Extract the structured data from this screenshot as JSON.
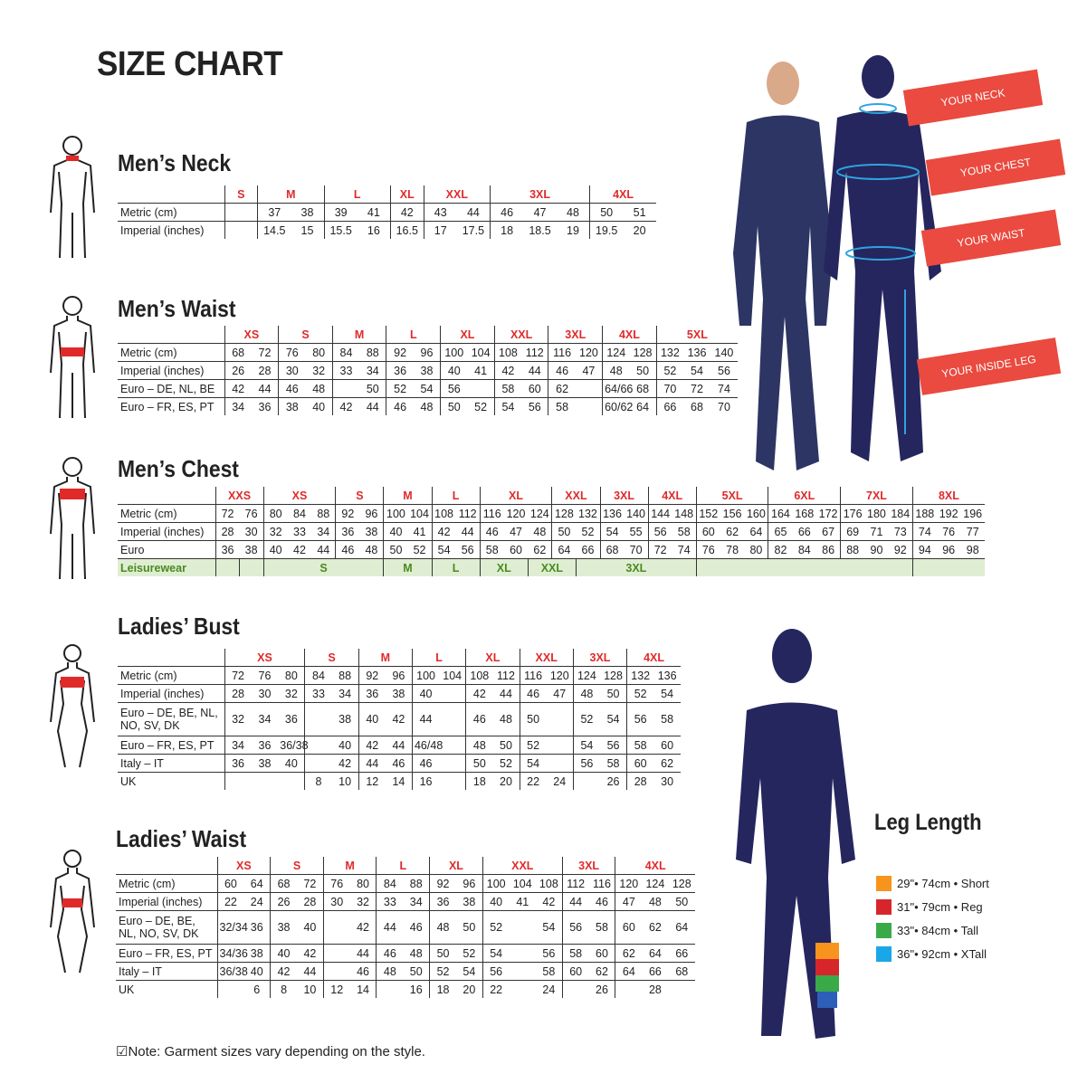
{
  "title": "SIZE CHART",
  "tables": [
    {
      "title": "Men’s Neck",
      "groups": [
        [
          "S",
          1
        ],
        [
          "M",
          2
        ],
        [
          "L",
          2
        ],
        [
          "XL",
          1
        ],
        [
          "XXL",
          2
        ],
        [
          "3XL",
          3
        ],
        [
          "4XL",
          2
        ]
      ],
      "rows": [
        {
          "label": "Metric (cm)",
          "cells": [
            "",
            "37",
            "38",
            "39",
            "41",
            "42",
            "43",
            "44",
            "46",
            "47",
            "48",
            "50",
            "51"
          ]
        },
        {
          "label": "Imperial (inches)",
          "cells": [
            "",
            "14.5",
            "15",
            "15.5",
            "16",
            "16.5",
            "17",
            "17.5",
            "18",
            "18.5",
            "19",
            "19.5",
            "20"
          ]
        }
      ]
    },
    {
      "title": "Men’s Waist",
      "groups": [
        [
          "XS",
          2
        ],
        [
          "S",
          2
        ],
        [
          "M",
          2
        ],
        [
          "L",
          2
        ],
        [
          "XL",
          2
        ],
        [
          "XXL",
          2
        ],
        [
          "3XL",
          2
        ],
        [
          "4XL",
          2
        ],
        [
          "5XL",
          3
        ]
      ],
      "rows": [
        {
          "label": "Metric (cm)",
          "cells": [
            "68",
            "72",
            "76",
            "80",
            "84",
            "88",
            "92",
            "96",
            "100",
            "104",
            "108",
            "112",
            "116",
            "120",
            "124",
            "128",
            "132",
            "136",
            "140"
          ]
        },
        {
          "label": "Imperial (inches)",
          "cells": [
            "26",
            "28",
            "30",
            "32",
            "33",
            "34",
            "36",
            "38",
            "40",
            "41",
            "42",
            "44",
            "46",
            "47",
            "48",
            "50",
            "52",
            "54",
            "56"
          ]
        },
        {
          "label": "Euro – DE, NL, BE",
          "cells": [
            "42",
            "44",
            "46",
            "48",
            "",
            "50",
            "52",
            "54",
            "56",
            "",
            "58",
            "60",
            "62",
            "",
            "64/66",
            "68",
            "70",
            "72",
            "74"
          ]
        },
        {
          "label": "Euro – FR, ES, PT",
          "cells": [
            "34",
            "36",
            "38",
            "40",
            "42",
            "44",
            "46",
            "48",
            "50",
            "52",
            "54",
            "56",
            "58",
            "",
            "60/62",
            "64",
            "66",
            "68",
            "70"
          ]
        }
      ]
    },
    {
      "title": "Men’s Chest",
      "groups": [
        [
          "XXS",
          2
        ],
        [
          "XS",
          3
        ],
        [
          "S",
          2
        ],
        [
          "M",
          2
        ],
        [
          "L",
          2
        ],
        [
          "XL",
          3
        ],
        [
          "XXL",
          2
        ],
        [
          "3XL",
          2
        ],
        [
          "4XL",
          2
        ],
        [
          "5XL",
          3
        ],
        [
          "6XL",
          3
        ],
        [
          "7XL",
          3
        ],
        [
          "8XL",
          3
        ]
      ],
      "rows": [
        {
          "label": "Metric (cm)",
          "cells": [
            "72",
            "76",
            "80",
            "84",
            "88",
            "92",
            "96",
            "100",
            "104",
            "108",
            "112",
            "116",
            "120",
            "124",
            "128",
            "132",
            "136",
            "140",
            "144",
            "148",
            "152",
            "156",
            "160",
            "164",
            "168",
            "172",
            "176",
            "180",
            "184",
            "188",
            "192",
            "196"
          ]
        },
        {
          "label": "Imperial (inches)",
          "cells": [
            "28",
            "30",
            "32",
            "33",
            "34",
            "36",
            "38",
            "40",
            "41",
            "42",
            "44",
            "46",
            "47",
            "48",
            "50",
            "52",
            "54",
            "55",
            "56",
            "58",
            "60",
            "62",
            "64",
            "65",
            "66",
            "67",
            "69",
            "71",
            "73",
            "74",
            "76",
            "77"
          ]
        },
        {
          "label": "Euro",
          "cells": [
            "36",
            "38",
            "40",
            "42",
            "44",
            "46",
            "48",
            "50",
            "52",
            "54",
            "56",
            "58",
            "60",
            "62",
            "64",
            "66",
            "68",
            "70",
            "72",
            "74",
            "76",
            "78",
            "80",
            "82",
            "84",
            "86",
            "88",
            "90",
            "92",
            "94",
            "96",
            "98"
          ]
        }
      ],
      "leisure": {
        "label": "Leisurewear",
        "cells": [
          [
            "",
            1
          ],
          [
            "",
            1
          ],
          [
            "S",
            5
          ],
          [
            "M",
            2
          ],
          [
            "L",
            2
          ],
          [
            "XL",
            2
          ],
          [
            "XXL",
            2
          ],
          [
            "3XL",
            5
          ],
          [
            "",
            9
          ],
          [
            "",
            3
          ]
        ]
      }
    },
    {
      "title": "Ladies’ Bust",
      "groups": [
        [
          "XS",
          3
        ],
        [
          "S",
          2
        ],
        [
          "M",
          2
        ],
        [
          "L",
          2
        ],
        [
          "XL",
          2
        ],
        [
          "XXL",
          2
        ],
        [
          "3XL",
          2
        ],
        [
          "4XL",
          2
        ]
      ],
      "rows": [
        {
          "label": "Metric (cm)",
          "cells": [
            "72",
            "76",
            "80",
            "84",
            "88",
            "92",
            "96",
            "100",
            "104",
            "108",
            "112",
            "116",
            "120",
            "124",
            "128",
            "132",
            "136"
          ]
        },
        {
          "label": "Imperial (inches)",
          "cells": [
            "28",
            "30",
            "32",
            "33",
            "34",
            "36",
            "38",
            "40",
            "",
            "42",
            "44",
            "46",
            "47",
            "48",
            "50",
            "52",
            "54"
          ]
        },
        {
          "label": "Euro –  DE, BE, NL, NO, SV, DK",
          "tall": true,
          "cells": [
            "32",
            "34",
            "36",
            "",
            "38",
            "40",
            "42",
            "44",
            "",
            "46",
            "48",
            "50",
            "",
            "52",
            "54",
            "56",
            "58"
          ]
        },
        {
          "label": "Euro – FR, ES, PT",
          "cells": [
            "34",
            "36",
            "36/38",
            "",
            "40",
            "42",
            "44",
            "46/48",
            "",
            "48",
            "50",
            "52",
            "",
            "54",
            "56",
            "58",
            "60"
          ]
        },
        {
          "label": "Italy – IT",
          "cells": [
            "36",
            "38",
            "40",
            "",
            "42",
            "44",
            "46",
            "46",
            "",
            "50",
            "52",
            "54",
            "",
            "56",
            "58",
            "60",
            "62"
          ]
        },
        {
          "label": "UK",
          "cells": [
            "",
            "",
            "",
            "8",
            "10",
            "12",
            "14",
            "16",
            "",
            "18",
            "20",
            "22",
            "24",
            "",
            "26",
            "28",
            "30"
          ]
        }
      ]
    },
    {
      "title": "Ladies’ Waist",
      "groups": [
        [
          "XS",
          2
        ],
        [
          "S",
          2
        ],
        [
          "M",
          2
        ],
        [
          "L",
          2
        ],
        [
          "XL",
          2
        ],
        [
          "XXL",
          3
        ],
        [
          "3XL",
          2
        ],
        [
          "4XL",
          3
        ]
      ],
      "rows": [
        {
          "label": "Metric (cm)",
          "cells": [
            "60",
            "64",
            "68",
            "72",
            "76",
            "80",
            "84",
            "88",
            "92",
            "96",
            "100",
            "104",
            "108",
            "112",
            "116",
            "120",
            "124",
            "128"
          ]
        },
        {
          "label": "Imperial (inches)",
          "cells": [
            "22",
            "24",
            "26",
            "28",
            "30",
            "32",
            "33",
            "34",
            "36",
            "38",
            "40",
            "41",
            "42",
            "44",
            "46",
            "47",
            "48",
            "50"
          ]
        },
        {
          "label": "Euro – DE, BE, NL, NO, SV, DK",
          "tall": true,
          "cells": [
            "32/34",
            "36",
            "38",
            "40",
            "",
            "42",
            "44",
            "46",
            "48",
            "50",
            "52",
            "",
            "54",
            "56",
            "58",
            "60",
            "62",
            "64"
          ]
        },
        {
          "label": "Euro – FR, ES, PT",
          "cells": [
            "34/36",
            "38",
            "40",
            "42",
            "",
            "44",
            "46",
            "48",
            "50",
            "52",
            "54",
            "",
            "56",
            "58",
            "60",
            "62",
            "64",
            "66"
          ]
        },
        {
          "label": "Italy – IT",
          "cells": [
            "36/38",
            "40",
            "42",
            "44",
            "",
            "46",
            "48",
            "50",
            "52",
            "54",
            "56",
            "",
            "58",
            "60",
            "62",
            "64",
            "66",
            "68"
          ]
        },
        {
          "label": "UK",
          "cells": [
            "",
            "6",
            "8",
            "10",
            "12",
            "14",
            "",
            "16",
            "18",
            "20",
            "22",
            "",
            "24",
            "",
            "26",
            "",
            "28",
            ""
          ]
        }
      ]
    }
  ],
  "banners": [
    "YOUR NECK",
    "YOUR CHEST",
    "YOUR WAIST",
    "YOUR INSIDE LEG"
  ],
  "leg": {
    "title": "Leg Length",
    "items": [
      {
        "label": "29\"• 74cm • Short",
        "color": "#f7941d"
      },
      {
        "label": "31\"• 79cm • Reg",
        "color": "#d7262b"
      },
      {
        "label": "33\"• 84cm • Tall",
        "color": "#3aaa48"
      },
      {
        "label": "36\"• 92cm • XTall",
        "color": "#1aa7e8"
      }
    ]
  },
  "note": "Note: Garment sizes vary depending on the style.",
  "colors": {
    "accent": "#e02a2a",
    "navy": "#25265e",
    "banner": "#ea4a3f",
    "leisure_bg": "#dfeed3"
  }
}
